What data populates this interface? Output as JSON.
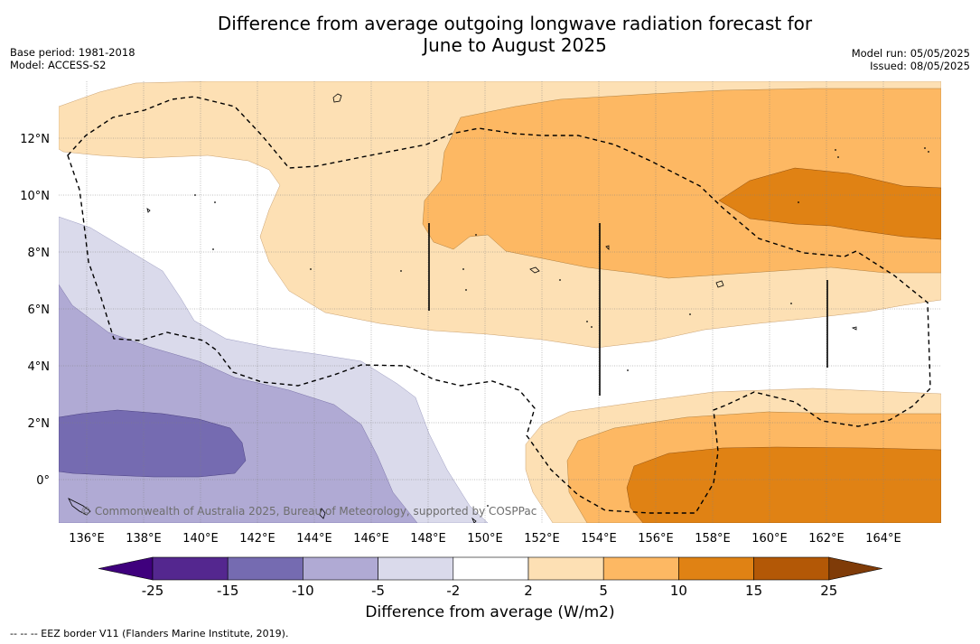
{
  "header": {
    "title_line1": "Difference from average outgoing longwave radiation forecast for",
    "title_line2": "June to August 2025",
    "base_period": "Base period: 1981-2018",
    "model": "Model: ACCESS-S2",
    "model_run": "Model run: 05/05/2025",
    "issued": "Issued: 08/05/2025"
  },
  "map": {
    "lon_labels": [
      "136°E",
      "138°E",
      "140°E",
      "142°E",
      "144°E",
      "146°E",
      "148°E",
      "150°E",
      "152°E",
      "154°E",
      "156°E",
      "158°E",
      "160°E",
      "162°E",
      "164°E"
    ],
    "lat_labels": [
      "12°N",
      "10°N",
      "8°N",
      "6°N",
      "4°N",
      "2°N",
      "0°"
    ],
    "copyright": "© Commonwealth of Australia 2025, Bureau of Meteorology, supported by COSPPac"
  },
  "legend": {
    "tick_labels": [
      "-25",
      "-15",
      "-10",
      "-5",
      "-2",
      "2",
      "5",
      "10",
      "15",
      "25"
    ],
    "colors": [
      "#54278f",
      "#756bb1",
      "#b0aad4",
      "#dadaeb",
      "#ffffff",
      "#fde0b4",
      "#fdb863",
      "#e08214",
      "#b35806"
    ],
    "low_extend_color": "#3f007d",
    "high_extend_color": "#7f3b08",
    "title": "Difference from average (W/m2)",
    "footnote": "--  --  -- EEZ border V11 (Flanders Marine Institute, 2019)."
  }
}
